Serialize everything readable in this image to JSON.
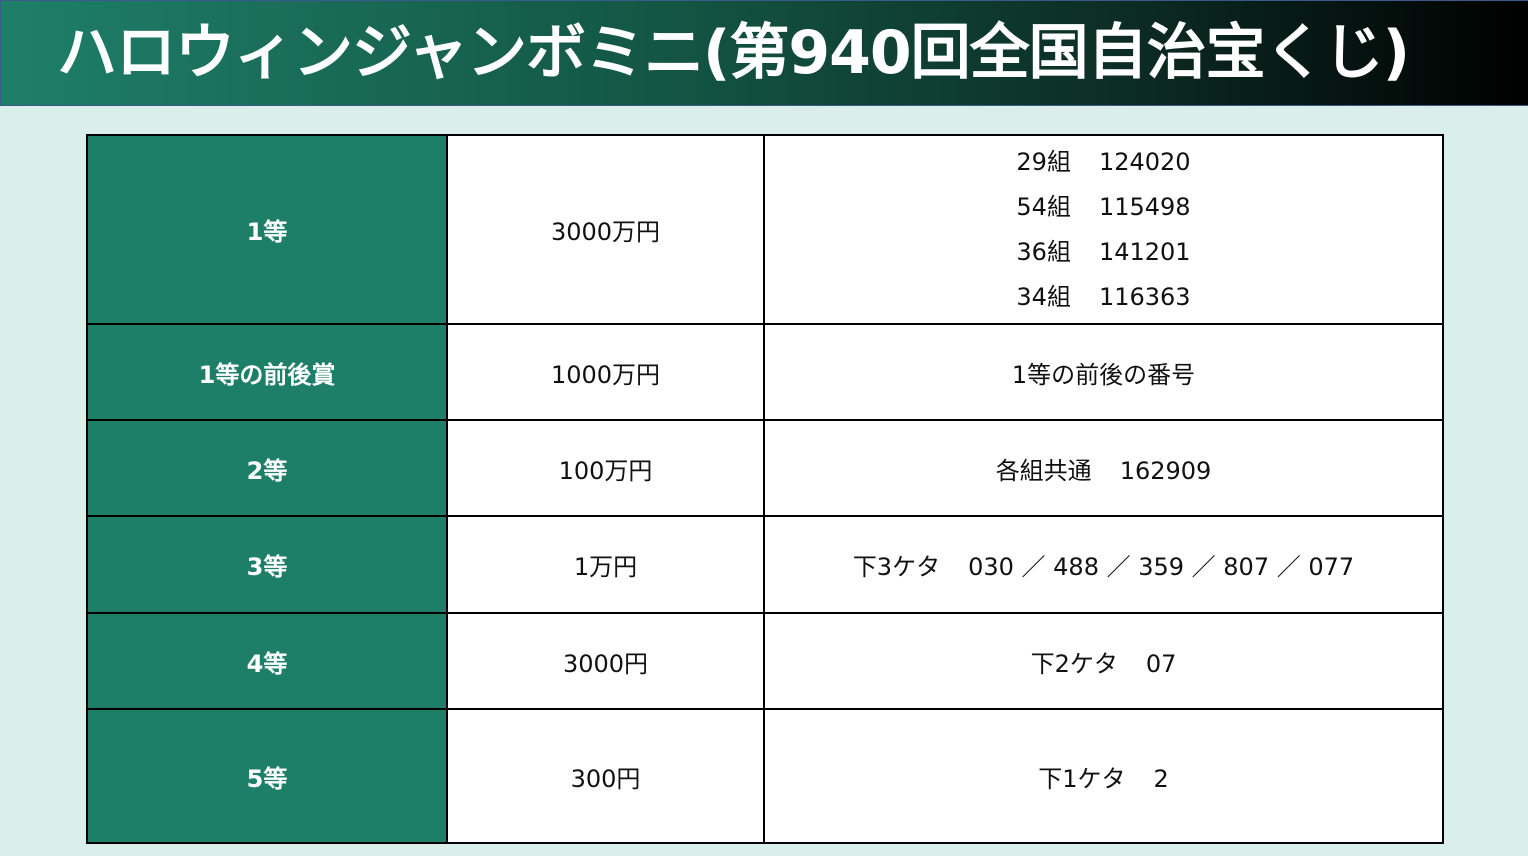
{
  "title": "ハロウィンジャンボミニ(第940回全国自治宝くじ)",
  "colors": {
    "grade_bg": "#1e7f69",
    "page_bg": "#daefea"
  },
  "rows": [
    {
      "grade": "1等",
      "prize": "3000万円",
      "numbers": [
        {
          "group": "29組",
          "number": "124020"
        },
        {
          "group": "54組",
          "number": "115498"
        },
        {
          "group": "36組",
          "number": "141201"
        },
        {
          "group": "34組",
          "number": "116363"
        }
      ]
    },
    {
      "grade": "1等の前後賞",
      "prize": "1000万円",
      "text": "1等の前後の番号"
    },
    {
      "grade": "2等",
      "prize": "100万円",
      "label": "各組共通",
      "value": "162909"
    },
    {
      "grade": "3等",
      "prize": "1万円",
      "label": "下3ケタ",
      "value": "030 ／ 488 ／ 359 ／ 807 ／ 077"
    },
    {
      "grade": "4等",
      "prize": "3000円",
      "label": "下2ケタ",
      "value": "07"
    },
    {
      "grade": "5等",
      "prize": "300円",
      "label": "下1ケタ",
      "value": "2"
    }
  ]
}
